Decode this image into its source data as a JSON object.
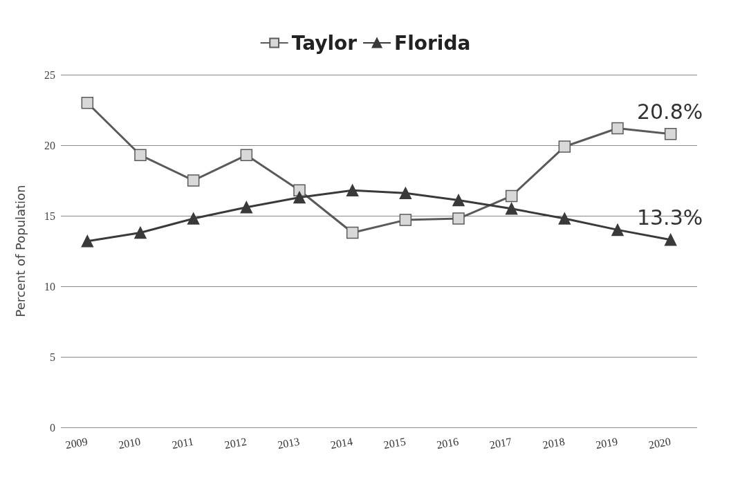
{
  "chart_data": {
    "type": "line",
    "ylabel": "Percent of Population",
    "categories": [
      "2009",
      "2010",
      "2011",
      "2012",
      "2013",
      "2014",
      "2015",
      "2016",
      "2017",
      "2018",
      "2019",
      "2020"
    ],
    "series": [
      {
        "name": "Taylor",
        "color": "#5a5a5a",
        "marker": "square",
        "values": [
          23.0,
          19.3,
          17.5,
          19.3,
          16.8,
          13.8,
          14.7,
          14.8,
          16.4,
          19.9,
          21.2,
          20.8
        ],
        "value_labels": [
          null,
          null,
          null,
          null,
          null,
          null,
          null,
          null,
          null,
          null,
          null,
          "20.8%"
        ]
      },
      {
        "name": "Florida",
        "color": "#3a3a3a",
        "marker": "triangle",
        "values": [
          13.2,
          13.8,
          14.8,
          15.6,
          16.3,
          16.8,
          16.6,
          16.1,
          15.5,
          14.8,
          14.0,
          13.3
        ],
        "value_labels": [
          null,
          null,
          null,
          null,
          null,
          null,
          null,
          null,
          null,
          null,
          null,
          "13.3%"
        ]
      }
    ],
    "ylim": [
      0,
      25
    ],
    "yticks": [
      0,
      5,
      10,
      15,
      20,
      25
    ],
    "grid": "y",
    "legend": "top"
  }
}
